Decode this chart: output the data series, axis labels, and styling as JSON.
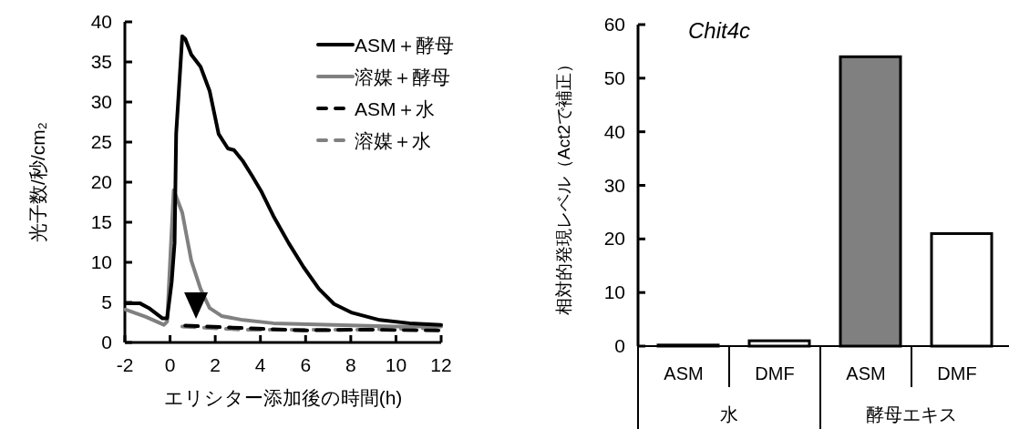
{
  "chart_data": [
    {
      "type": "line",
      "xlabel": "エリシター添加後の時間(h)",
      "ylabel": "光子数/秒/cm₂",
      "xlim": [
        -2,
        12
      ],
      "xticks": [
        -2,
        0,
        2,
        4,
        6,
        8,
        10,
        12
      ],
      "ylim": [
        0,
        40
      ],
      "yticks": [
        0,
        5,
        10,
        15,
        20,
        25,
        30,
        35,
        40
      ],
      "grid": false,
      "legend": "top right",
      "marker": "none",
      "series": [
        {
          "name": "ASM＋酵母",
          "color": "#000000",
          "line_style": "solid",
          "x": [
            -1.97,
            -1.34,
            -0.94,
            -0.33,
            -0.13,
            0.07,
            0.2,
            0.27,
            0.54,
            0.67,
            0.94,
            1.35,
            1.75,
            2.15,
            2.56,
            2.83,
            3.23,
            3.63,
            4.03,
            4.57,
            5.25,
            5.91,
            6.59,
            7.26,
            8.06,
            9.28,
            10.6,
            12
          ],
          "values": [
            4.9,
            4.9,
            4.3,
            3,
            3,
            7.5,
            12.4,
            26,
            38.2,
            37.9,
            35.9,
            34.4,
            31.4,
            26,
            24.2,
            24,
            22.6,
            20.8,
            18.9,
            15.8,
            12.4,
            9.4,
            6.7,
            4.8,
            3.7,
            2.8,
            2.4,
            2.2
          ]
        },
        {
          "name": "溶媒＋酵母",
          "color": "#808080",
          "line_style": "solid",
          "x": [
            -1.97,
            -1.07,
            -0.27,
            -0.13,
            0.07,
            0.16,
            0.34,
            0.54,
            0.94,
            1.35,
            1.75,
            2.28,
            3.23,
            4.57,
            7.26,
            9.95,
            12
          ],
          "values": [
            4.1,
            3.2,
            2.2,
            2.6,
            13.9,
            19,
            17.7,
            16.2,
            10.2,
            6.7,
            4.3,
            3.3,
            2.8,
            2.4,
            2.2,
            2.0,
            2.0
          ]
        },
        {
          "name": "ASM＋水",
          "color": "#000000",
          "line_style": "dashed",
          "x": [
            0.67,
            3.23,
            5.91,
            8.6,
            12
          ],
          "values": [
            2.1,
            1.8,
            1.5,
            1.6,
            1.5
          ]
        },
        {
          "name": "溶媒＋水",
          "color": "#808080",
          "line_style": "dashed",
          "x": [
            0.54,
            3.23,
            5.91,
            8.6,
            12
          ],
          "values": [
            2.0,
            1.6,
            1.6,
            1.6,
            1.8
          ]
        }
      ]
    },
    {
      "type": "bar",
      "title": "Chit4c",
      "ylabel": "相対的発現レベル（Act2で補正）",
      "categories": [
        "ASM",
        "DMF",
        "ASM",
        "DMF"
      ],
      "values": [
        0.2,
        1,
        54,
        21
      ],
      "colors": [
        "#ffffff",
        "#ffffff",
        "#808080",
        "#ffffff"
      ],
      "ylim": [
        0,
        60
      ],
      "yticks": [
        0,
        10,
        20,
        30,
        40,
        50,
        60
      ],
      "grid": false,
      "annotations": [
        "水",
        "酵母エキス"
      ]
    }
  ]
}
